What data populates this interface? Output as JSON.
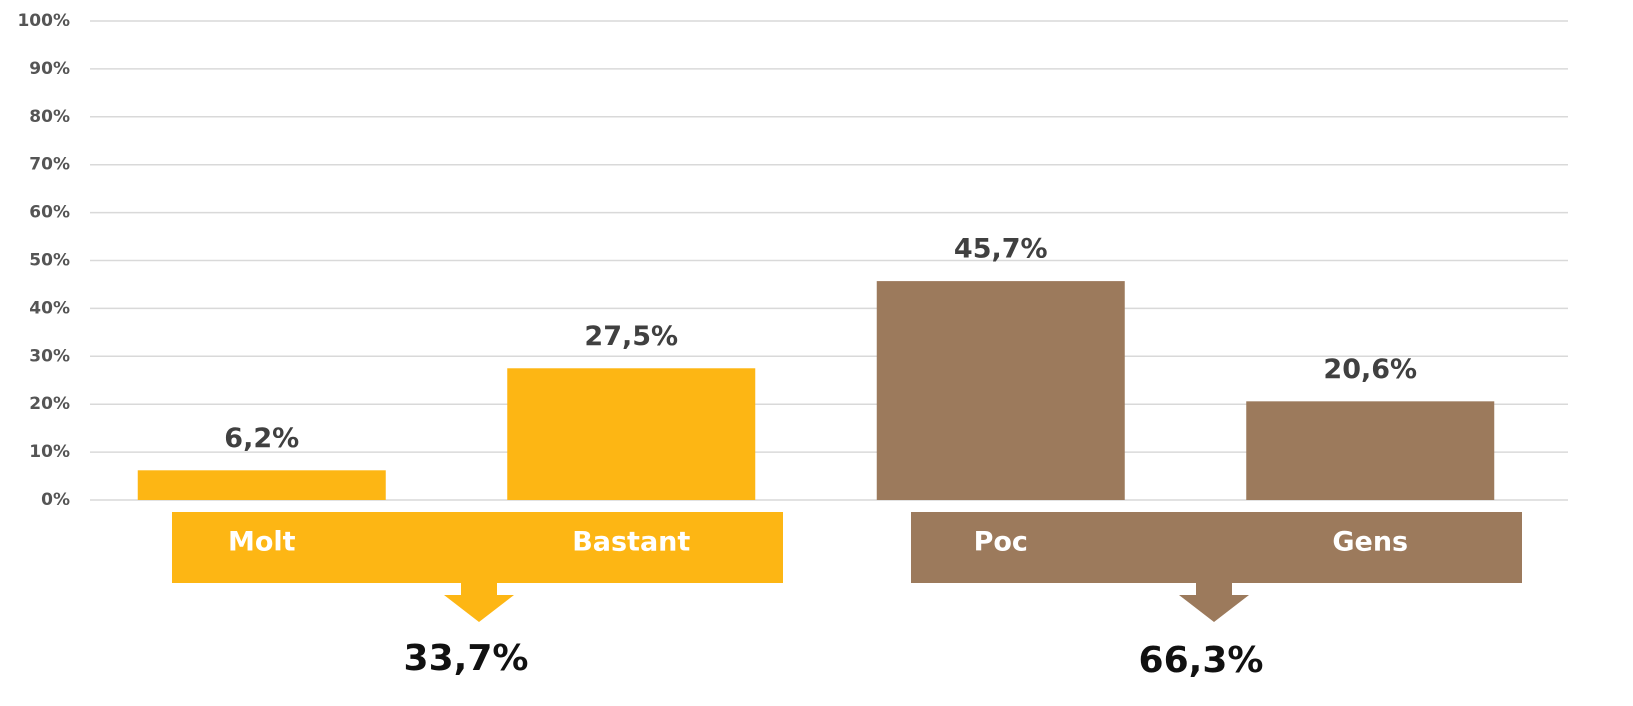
{
  "chart_data": {
    "type": "bar",
    "categories": [
      "Molt",
      "Bastant",
      "Poc",
      "Gens"
    ],
    "values": [
      6.2,
      27.5,
      45.7,
      20.6
    ],
    "value_labels": [
      "6,2%",
      "27,5%",
      "45,7%",
      "20,6%"
    ],
    "colors": [
      "#fdb614",
      "#fdb614",
      "#9c7a5c",
      "#9c7a5c"
    ],
    "ylim": [
      0,
      100
    ],
    "yticks": [
      {
        "value": 0,
        "label": "0%"
      },
      {
        "value": 10,
        "label": "10%"
      },
      {
        "value": 20,
        "label": "20%"
      },
      {
        "value": 30,
        "label": "30%"
      },
      {
        "value": 40,
        "label": "40%"
      },
      {
        "value": 50,
        "label": "50%"
      },
      {
        "value": 60,
        "label": "60%"
      },
      {
        "value": 70,
        "label": "70%"
      },
      {
        "value": 80,
        "label": "80%"
      },
      {
        "value": 90,
        "label": "90%"
      },
      {
        "value": 100,
        "label": "100%"
      }
    ],
    "grid": true,
    "groups": [
      {
        "value": 33.7,
        "label": "33,7%",
        "color": "#fdb614"
      },
      {
        "value": 66.3,
        "label": "66,3%",
        "color": "#9c7a5c"
      }
    ]
  }
}
